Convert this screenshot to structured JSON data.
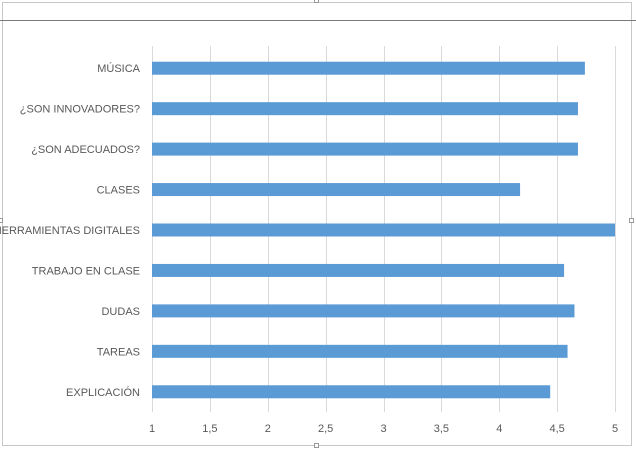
{
  "chart_data": {
    "type": "bar",
    "orientation": "horizontal",
    "categories": [
      "MÚSICA",
      "¿SON INNOVADORES?",
      "¿SON ADECUADOS?",
      "CLASES",
      "HERRAMIENTAS DIGITALES",
      "TRABAJO EN CLASE",
      "DUDAS",
      "TAREAS",
      "EXPLICACIÓN"
    ],
    "values": [
      4.74,
      4.68,
      4.68,
      4.18,
      5.0,
      4.56,
      4.65,
      4.59,
      4.44
    ],
    "xlim": [
      1,
      5
    ],
    "xticks": [
      "1",
      "1,5",
      "2",
      "2,5",
      "3",
      "3,5",
      "4",
      "4,5",
      "5"
    ],
    "xtick_values": [
      1,
      1.5,
      2,
      2.5,
      3,
      3.5,
      4,
      4.5,
      5
    ],
    "bar_color": "#5b9bd5",
    "grid": true,
    "gridline_color": "#d9d9d9",
    "title": "",
    "xlabel": "",
    "ylabel": ""
  }
}
